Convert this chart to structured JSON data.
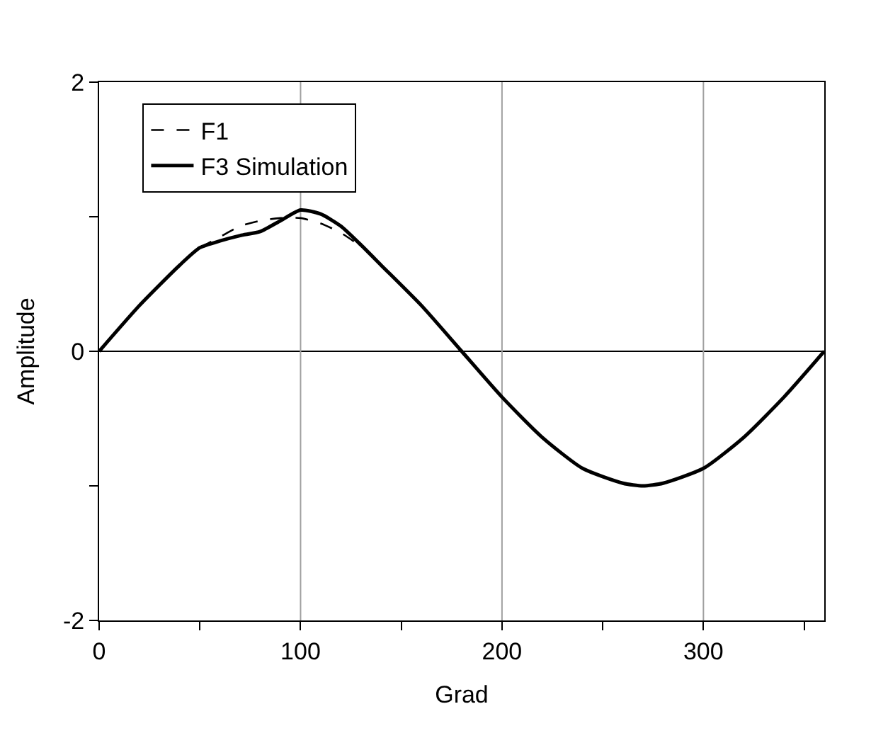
{
  "chart_data": {
    "type": "line",
    "xlabel": "Grad",
    "ylabel": "Amplitude",
    "x": [
      0,
      20,
      40,
      50,
      60,
      70,
      80,
      90,
      100,
      110,
      120,
      130,
      140,
      160,
      180,
      200,
      220,
      240,
      260,
      270,
      280,
      300,
      320,
      340,
      360
    ],
    "series": [
      {
        "name": "F1",
        "color": "#000000",
        "line_style": "dashed",
        "values": [
          null,
          null,
          null,
          0.77,
          0.85,
          0.93,
          0.97,
          0.99,
          0.99,
          0.95,
          0.88,
          0.78,
          null,
          null,
          null,
          null,
          null,
          null,
          null,
          null,
          null,
          null,
          null,
          null,
          null
        ]
      },
      {
        "name": "F3 Simulation",
        "color": "#000000",
        "line_style": "solid",
        "values": [
          0,
          0.34,
          0.64,
          0.77,
          0.82,
          0.86,
          0.89,
          0.97,
          1.05,
          1.02,
          0.93,
          0.79,
          0.64,
          0.34,
          0,
          -0.34,
          -0.64,
          -0.87,
          -0.98,
          -1.0,
          -0.98,
          -0.87,
          -0.64,
          -0.34,
          0
        ]
      }
    ],
    "xlim": [
      0,
      360
    ],
    "xticks": [
      0,
      {
        "value": 50,
        "label": null
      },
      100,
      {
        "value": 150,
        "label": null
      },
      200,
      {
        "value": 250,
        "label": null
      },
      300,
      {
        "value": 350,
        "label": null
      }
    ],
    "ylim": [
      -2,
      2
    ],
    "yticks": [
      -2,
      {
        "value": -1,
        "label": null
      },
      0,
      {
        "value": 1,
        "label": null
      },
      2
    ],
    "ref_lines": [
      {
        "axis": "y",
        "value": 0,
        "color": "#000000"
      }
    ],
    "grid": "x",
    "legend": "top left",
    "marker": "none"
  }
}
